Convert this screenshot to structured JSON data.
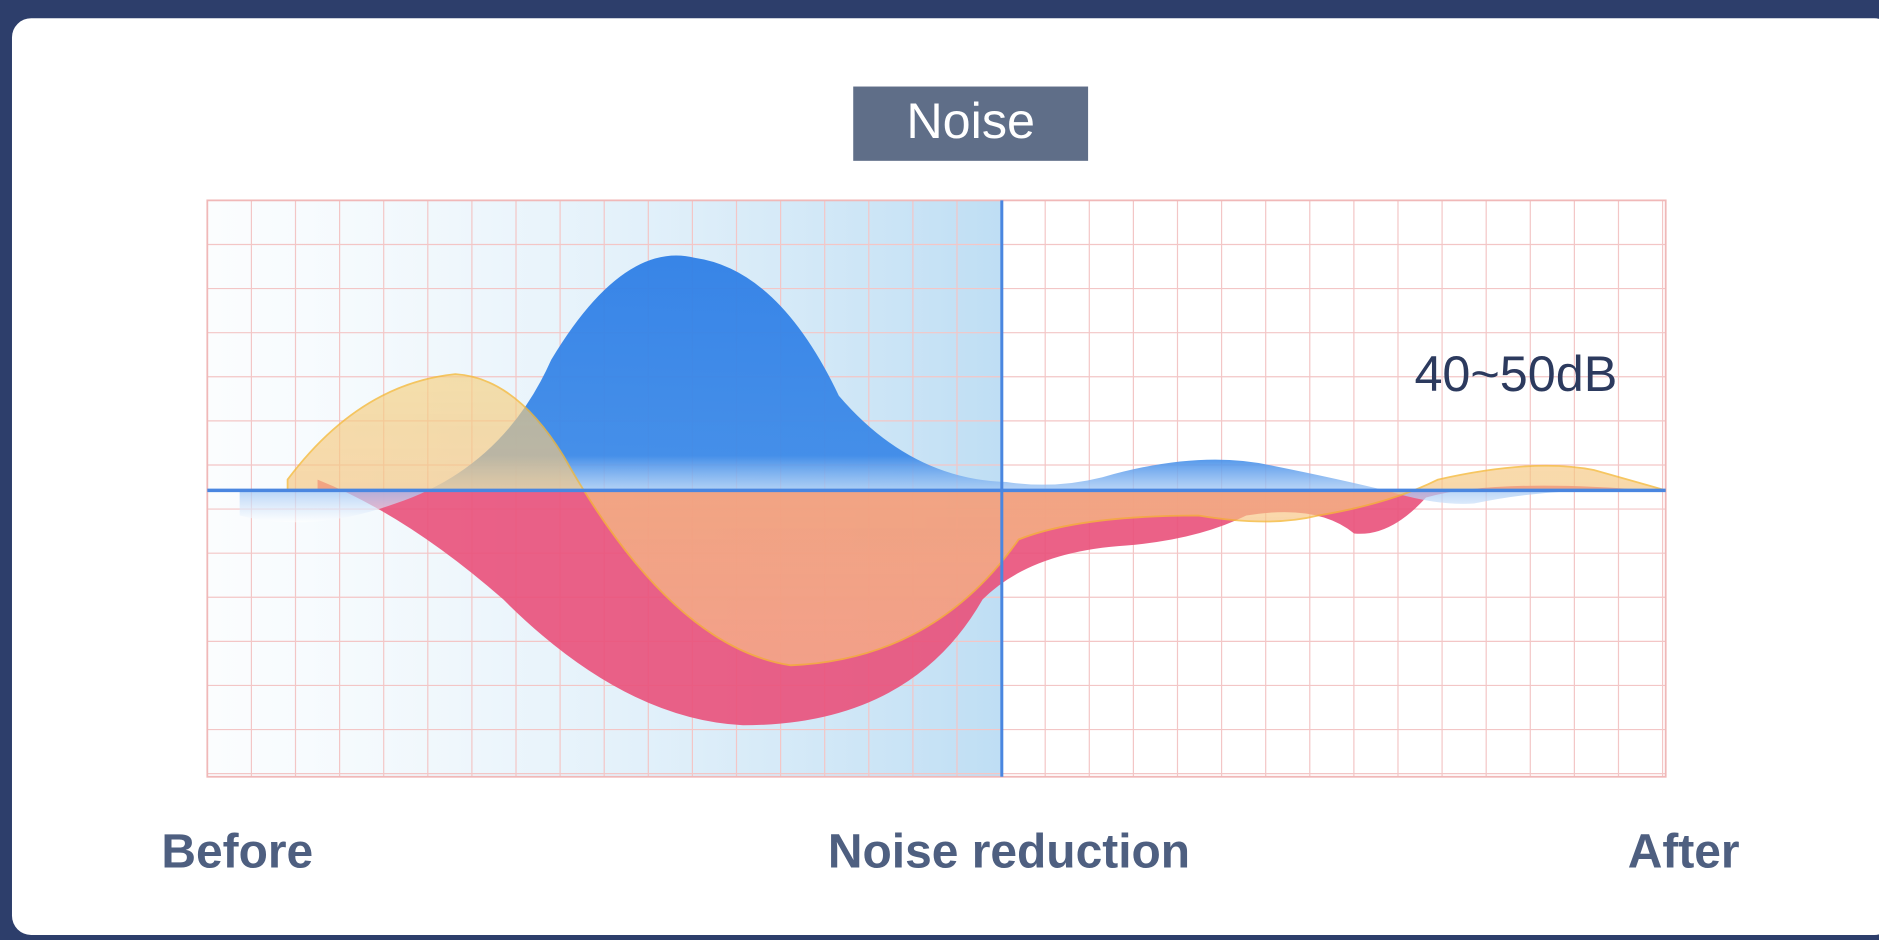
{
  "label": "Noise",
  "level": "40~50dB",
  "axis": {
    "before": "Before",
    "middle": "Noise reduction",
    "after": "After"
  }
}
